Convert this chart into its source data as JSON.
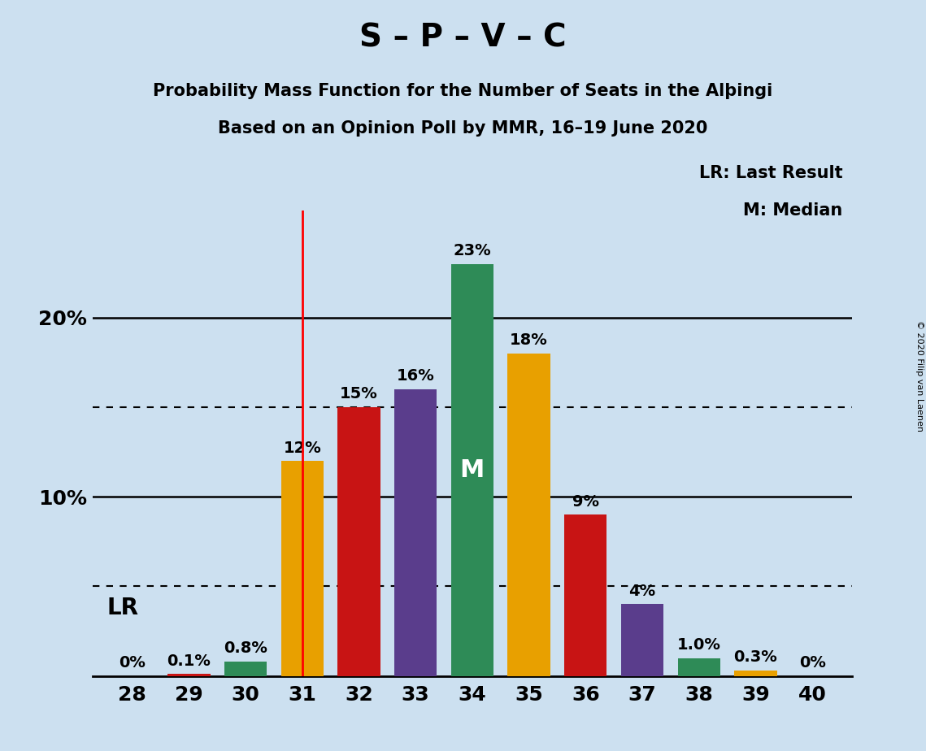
{
  "title": "S – P – V – C",
  "subtitle1": "Probability Mass Function for the Number of Seats in the Alþingi",
  "subtitle2": "Based on an Opinion Poll by MMR, 16–19 June 2020",
  "copyright": "© 2020 Filip van Laenen",
  "seats": [
    28,
    29,
    30,
    31,
    32,
    33,
    34,
    35,
    36,
    37,
    38,
    39,
    40
  ],
  "probabilities": [
    0.0,
    0.1,
    0.8,
    12.0,
    15.0,
    16.0,
    23.0,
    18.0,
    9.0,
    4.0,
    1.0,
    0.3,
    0.0
  ],
  "bar_colors": [
    "#c81414",
    "#c81414",
    "#2e8b57",
    "#e8a000",
    "#c81414",
    "#5a3d8c",
    "#2e8b57",
    "#e8a000",
    "#c81414",
    "#5a3d8c",
    "#2e8b57",
    "#e8a000",
    "#e8a000"
  ],
  "labels": [
    "0%",
    "0.1%",
    "0.8%",
    "12%",
    "15%",
    "16%",
    "23%",
    "18%",
    "9%",
    "4%",
    "1.0%",
    "0.3%",
    "0%"
  ],
  "lr_seat": 31,
  "median_seat": 34,
  "lr_label": "LR",
  "median_label": "M",
  "legend_lr": "LR: Last Result",
  "legend_m": "M: Median",
  "background_color": "#cce0f0",
  "ylim": [
    0,
    26
  ],
  "dotted_lines": [
    5,
    15
  ],
  "solid_lines": [
    10,
    20
  ],
  "label_fontsize": 14,
  "tick_fontsize": 18,
  "title_fontsize": 28,
  "subtitle_fontsize": 15,
  "legend_fontsize": 15,
  "lr_fontsize": 20,
  "median_fontsize": 22
}
